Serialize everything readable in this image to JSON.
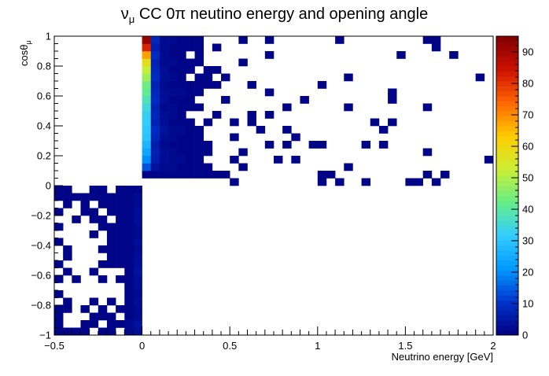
{
  "title": "ν_μ CC 0π neutino energy and opening angle",
  "title_parts": {
    "nu": "ν",
    "mu_sub": "μ",
    "rest": " CC 0π neutino energy and opening angle"
  },
  "ylabel": {
    "base": "cosθ",
    "sub": "μ"
  },
  "xlabel": "Neutrino energy [GeV]",
  "chart_data": {
    "type": "heatmap",
    "title": "ν_μ CC 0π neutino energy and opening angle",
    "xlabel": "Neutrino energy [GeV]",
    "ylabel": "cosθ_μ",
    "xlim": [
      -0.5,
      2
    ],
    "ylim": [
      -1,
      1
    ],
    "zlim": [
      0,
      95
    ],
    "x_bins": 125,
    "y_bins": 40,
    "x_ticks": [
      "−0.5",
      "0",
      "0.5",
      "1",
      "1.5",
      "2"
    ],
    "y_ticks": [
      "−1",
      "−0.8",
      "−0.6",
      "−0.4",
      "−0.2",
      "0",
      "0.2",
      "0.4",
      "0.6",
      "0.8",
      "1"
    ],
    "z_ticks": [
      "0",
      "10",
      "20",
      "30",
      "40",
      "50",
      "60",
      "70",
      "80",
      "90"
    ],
    "colormap": [
      "#000080",
      "#0033cc",
      "#0099ff",
      "#33ccff",
      "#66ee88",
      "#ccee33",
      "#ffcc00",
      "#ff6600",
      "#cc1100",
      "#800000"
    ],
    "columns": [
      {
        "x": 0.025,
        "v": [
          0,
          0,
          0,
          0,
          0,
          0,
          0,
          0,
          0,
          0,
          0,
          0,
          0,
          0,
          0,
          0,
          0,
          0,
          0,
          0,
          0,
          1,
          14,
          20,
          24,
          27,
          30,
          31,
          32,
          33,
          35,
          38,
          41,
          43,
          48,
          52,
          58,
          68,
          82,
          92
        ]
      },
      {
        "x": 0.075,
        "v": [
          0,
          0,
          0,
          0,
          0,
          0,
          0,
          0,
          0,
          0,
          0,
          0,
          0,
          0,
          0,
          0,
          0,
          0,
          0,
          0,
          0,
          1,
          4,
          6,
          7,
          6,
          8,
          9,
          7,
          8,
          7,
          9,
          8,
          7,
          9,
          8,
          7,
          9,
          6,
          8
        ]
      },
      {
        "x": 0.125,
        "v": [
          0,
          0,
          0,
          0,
          0,
          0,
          0,
          0,
          0,
          0,
          0,
          0,
          0,
          0,
          0,
          0,
          0,
          0,
          0,
          0,
          0,
          1,
          2,
          3,
          3,
          2,
          3,
          4,
          3,
          3,
          2,
          3,
          3,
          2,
          3,
          3,
          2,
          2,
          2,
          2
        ]
      },
      {
        "x": 0.175,
        "v": [
          0,
          0,
          0,
          0,
          0,
          0,
          0,
          0,
          0,
          0,
          0,
          0,
          0,
          0,
          0,
          0,
          0,
          0,
          0,
          0,
          0,
          1,
          2,
          2,
          2,
          1,
          2,
          2,
          1,
          2,
          2,
          1,
          2,
          1,
          2,
          1,
          2,
          1,
          1,
          2
        ]
      },
      {
        "x": 0.225,
        "v": [
          0,
          0,
          0,
          0,
          0,
          0,
          0,
          0,
          0,
          0,
          0,
          0,
          0,
          0,
          0,
          0,
          0,
          0,
          0,
          0,
          0,
          1,
          1,
          2,
          1,
          1,
          1,
          2,
          1,
          1,
          1,
          1,
          2,
          1,
          1,
          1,
          1,
          1,
          1,
          1
        ]
      },
      {
        "x": 0.275,
        "v": [
          0,
          0,
          0,
          0,
          0,
          0,
          0,
          0,
          0,
          0,
          0,
          0,
          0,
          0,
          0,
          0,
          0,
          0,
          0,
          0,
          0,
          1,
          1,
          1,
          1,
          1,
          1,
          1,
          1,
          0,
          1,
          1,
          1,
          1,
          0,
          1,
          1,
          0,
          1,
          1
        ]
      },
      {
        "x": -0.025,
        "v": [
          3,
          4,
          2,
          2,
          3,
          2,
          3,
          3,
          4,
          3,
          3,
          2,
          3,
          2,
          2,
          3,
          3,
          2,
          2,
          1,
          0,
          0,
          0,
          0,
          0,
          0,
          0,
          0,
          0,
          0,
          0,
          0,
          0,
          0,
          0,
          0,
          0,
          0,
          0,
          0
        ]
      },
      {
        "x": -0.075,
        "v": [
          2,
          2,
          1,
          1,
          1,
          1,
          1,
          1,
          1,
          1,
          1,
          1,
          1,
          1,
          1,
          1,
          1,
          1,
          1,
          1,
          0,
          0,
          0,
          0,
          0,
          0,
          0,
          0,
          0,
          0,
          0,
          0,
          0,
          0,
          0,
          0,
          0,
          0,
          0,
          0
        ]
      }
    ],
    "sparse_cells": [
      [
        -0.475,
        -0.975
      ],
      [
        -0.425,
        -0.975
      ],
      [
        -0.375,
        -0.975
      ],
      [
        -0.325,
        -0.975
      ],
      [
        -0.225,
        -0.975
      ],
      [
        -0.175,
        -0.975
      ],
      [
        -0.475,
        -0.925
      ],
      [
        -0.325,
        -0.925
      ],
      [
        -0.275,
        -0.925
      ],
      [
        -0.175,
        -0.925
      ],
      [
        -0.125,
        -0.925
      ],
      [
        -0.475,
        -0.875
      ],
      [
        -0.275,
        -0.875
      ],
      [
        -0.225,
        -0.875
      ],
      [
        -0.175,
        -0.875
      ],
      [
        -0.475,
        -0.825
      ],
      [
        -0.425,
        -0.825
      ],
      [
        -0.325,
        -0.825
      ],
      [
        -0.225,
        -0.825
      ],
      [
        -0.125,
        -0.825
      ],
      [
        -0.425,
        -0.775
      ],
      [
        -0.275,
        -0.775
      ],
      [
        -0.175,
        -0.775
      ],
      [
        -0.475,
        -0.725
      ],
      [
        -0.475,
        -0.625
      ],
      [
        -0.375,
        -0.625
      ],
      [
        -0.225,
        -0.625
      ],
      [
        -0.125,
        -0.625
      ],
      [
        -0.425,
        -0.575
      ],
      [
        -0.275,
        -0.575
      ],
      [
        -0.475,
        -0.525
      ],
      [
        -0.225,
        -0.525
      ],
      [
        -0.175,
        -0.525
      ],
      [
        -0.125,
        -0.525
      ],
      [
        -0.425,
        -0.475
      ],
      [
        -0.175,
        -0.475
      ],
      [
        -0.125,
        -0.475
      ],
      [
        -0.425,
        -0.425
      ],
      [
        -0.225,
        -0.425
      ],
      [
        -0.175,
        -0.425
      ],
      [
        -0.125,
        -0.425
      ],
      [
        -0.475,
        -0.375
      ],
      [
        -0.175,
        -0.375
      ],
      [
        -0.125,
        -0.375
      ],
      [
        -0.275,
        -0.325
      ],
      [
        -0.175,
        -0.325
      ],
      [
        -0.125,
        -0.325
      ],
      [
        -0.475,
        -0.275
      ],
      [
        -0.225,
        -0.275
      ],
      [
        -0.175,
        -0.275
      ],
      [
        -0.125,
        -0.275
      ],
      [
        -0.375,
        -0.225
      ],
      [
        -0.275,
        -0.225
      ],
      [
        -0.225,
        -0.225
      ],
      [
        -0.125,
        -0.225
      ],
      [
        -0.475,
        -0.175
      ],
      [
        -0.325,
        -0.175
      ],
      [
        -0.275,
        -0.175
      ],
      [
        -0.175,
        -0.175
      ],
      [
        -0.125,
        -0.175
      ],
      [
        -0.425,
        -0.125
      ],
      [
        -0.325,
        -0.125
      ],
      [
        -0.225,
        -0.125
      ],
      [
        -0.175,
        -0.125
      ],
      [
        -0.125,
        -0.125
      ],
      [
        -0.475,
        -0.075
      ],
      [
        -0.425,
        -0.075
      ],
      [
        -0.375,
        -0.075
      ],
      [
        -0.325,
        -0.075
      ],
      [
        -0.275,
        -0.075
      ],
      [
        -0.225,
        -0.075
      ],
      [
        -0.175,
        -0.075
      ],
      [
        -0.125,
        -0.075
      ],
      [
        -0.475,
        -0.025
      ],
      [
        -0.425,
        -0.025
      ],
      [
        -0.275,
        -0.025
      ],
      [
        -0.225,
        -0.025
      ],
      [
        -0.125,
        -0.025
      ],
      [
        0.325,
        0.975
      ],
      [
        0.575,
        0.975
      ],
      [
        0.725,
        0.975
      ],
      [
        1.125,
        0.975
      ],
      [
        1.625,
        0.975
      ],
      [
        1.675,
        0.975
      ],
      [
        0.325,
        0.925
      ],
      [
        0.425,
        0.925
      ],
      [
        1.675,
        0.925
      ],
      [
        0.325,
        0.875
      ],
      [
        0.725,
        0.875
      ],
      [
        1.475,
        0.875
      ],
      [
        1.775,
        0.875
      ],
      [
        0.325,
        0.825
      ],
      [
        0.575,
        0.825
      ],
      [
        0.375,
        0.775
      ],
      [
        0.425,
        0.775
      ],
      [
        0.325,
        0.725
      ],
      [
        0.375,
        0.725
      ],
      [
        0.475,
        0.725
      ],
      [
        1.175,
        0.725
      ],
      [
        1.925,
        0.725
      ],
      [
        0.325,
        0.675
      ],
      [
        0.375,
        0.675
      ],
      [
        0.425,
        0.675
      ],
      [
        0.625,
        0.675
      ],
      [
        1.025,
        0.675
      ],
      [
        0.325,
        0.625
      ],
      [
        0.725,
        0.625
      ],
      [
        1.425,
        0.625
      ],
      [
        0.475,
        0.575
      ],
      [
        0.925,
        0.575
      ],
      [
        1.425,
        0.575
      ],
      [
        0.325,
        0.525
      ],
      [
        0.825,
        0.525
      ],
      [
        1.175,
        0.525
      ],
      [
        1.625,
        0.525
      ],
      [
        0.425,
        0.475
      ],
      [
        0.625,
        0.475
      ],
      [
        0.725,
        0.475
      ],
      [
        0.375,
        0.425
      ],
      [
        0.525,
        0.425
      ],
      [
        0.625,
        0.425
      ],
      [
        1.325,
        0.425
      ],
      [
        1.425,
        0.425
      ],
      [
        0.325,
        0.375
      ],
      [
        0.675,
        0.375
      ],
      [
        0.825,
        0.375
      ],
      [
        1.375,
        0.375
      ],
      [
        0.325,
        0.325
      ],
      [
        0.525,
        0.325
      ],
      [
        0.875,
        0.325
      ],
      [
        0.325,
        0.275
      ],
      [
        0.375,
        0.275
      ],
      [
        0.725,
        0.275
      ],
      [
        0.825,
        0.275
      ],
      [
        0.975,
        0.275
      ],
      [
        1.025,
        0.275
      ],
      [
        1.275,
        0.275
      ],
      [
        1.375,
        0.275
      ],
      [
        0.325,
        0.225
      ],
      [
        0.375,
        0.225
      ],
      [
        0.575,
        0.225
      ],
      [
        1.625,
        0.225
      ],
      [
        0.325,
        0.175
      ],
      [
        0.525,
        0.175
      ],
      [
        0.775,
        0.175
      ],
      [
        0.875,
        0.175
      ],
      [
        1.975,
        0.175
      ],
      [
        0.325,
        0.125
      ],
      [
        0.375,
        0.125
      ],
      [
        0.575,
        0.125
      ],
      [
        1.175,
        0.125
      ],
      [
        0.325,
        0.075
      ],
      [
        0.375,
        0.075
      ],
      [
        0.425,
        0.075
      ],
      [
        0.475,
        0.075
      ],
      [
        1.025,
        0.075
      ],
      [
        1.075,
        0.075
      ],
      [
        1.625,
        0.075
      ],
      [
        1.725,
        0.075
      ],
      [
        0.525,
        0.025
      ],
      [
        1.025,
        0.025
      ],
      [
        1.125,
        0.025
      ],
      [
        1.275,
        0.025
      ],
      [
        1.525,
        0.025
      ],
      [
        1.575,
        0.025
      ],
      [
        1.675,
        0.025
      ]
    ]
  }
}
